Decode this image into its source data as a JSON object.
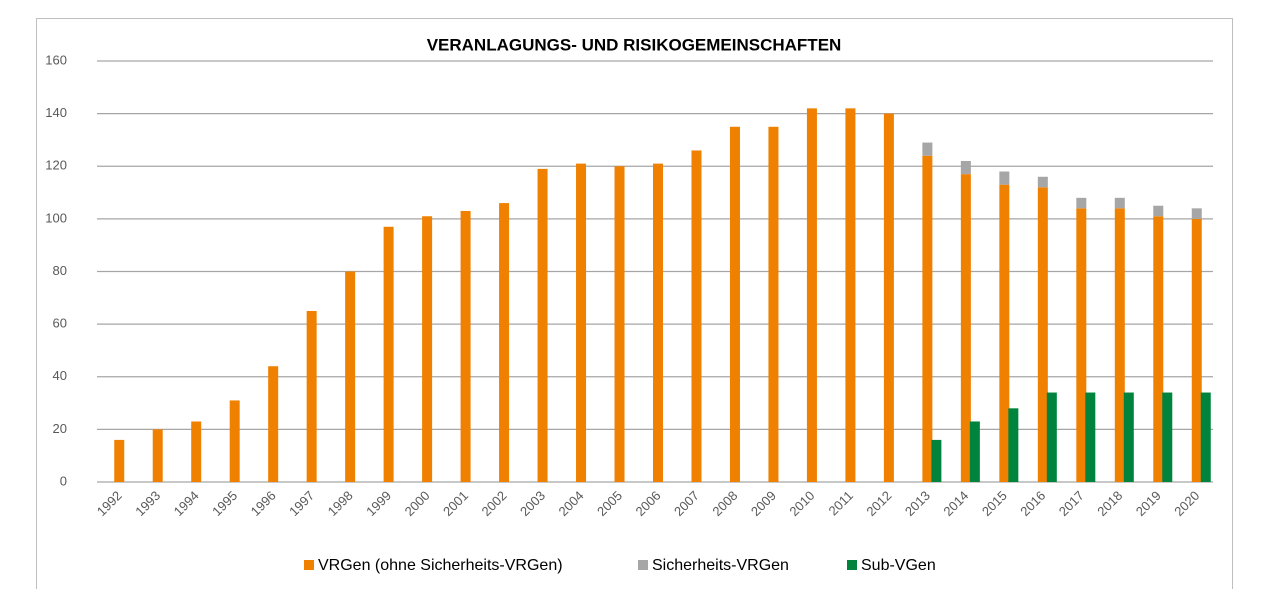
{
  "chart_data": {
    "type": "bar",
    "stacked": true,
    "title": "VERANLAGUNGS- UND RISIKOGEMEINSCHAFTEN",
    "categories": [
      "1992",
      "1993",
      "1994",
      "1995",
      "1996",
      "1997",
      "1998",
      "1999",
      "2000",
      "2001",
      "2002",
      "2003",
      "2004",
      "2005",
      "2006",
      "2007",
      "2008",
      "2009",
      "2010",
      "2011",
      "2012",
      "2013",
      "2014",
      "2015",
      "2016",
      "2017",
      "2018",
      "2019",
      "2020"
    ],
    "series": [
      {
        "name": "VRGen (ohne Sicherheits-VRGen)",
        "color": "#f08000",
        "stack": "a",
        "values": [
          16,
          20,
          23,
          31,
          44,
          65,
          80,
          97,
          101,
          103,
          106,
          119,
          121,
          120,
          121,
          126,
          135,
          135,
          142,
          142,
          140,
          124,
          117,
          113,
          112,
          104,
          104,
          101,
          100
        ]
      },
      {
        "name": "Sicherheits-VRGen",
        "color": "#a6a6a6",
        "stack": "a",
        "values": [
          null,
          null,
          null,
          null,
          null,
          null,
          null,
          null,
          null,
          null,
          null,
          null,
          null,
          null,
          null,
          null,
          null,
          null,
          null,
          null,
          null,
          5,
          5,
          5,
          4,
          4,
          4,
          4,
          4
        ]
      },
      {
        "name": "Sub-VGen",
        "color": "#00843d",
        "stack": "b",
        "values": [
          null,
          null,
          null,
          null,
          null,
          null,
          null,
          null,
          null,
          null,
          null,
          null,
          null,
          null,
          null,
          null,
          null,
          null,
          null,
          null,
          null,
          16,
          23,
          28,
          34,
          34,
          34,
          34,
          34
        ]
      }
    ],
    "ylim": [
      0,
      160
    ],
    "yticks": [
      0,
      20,
      40,
      60,
      80,
      100,
      120,
      140,
      160
    ],
    "grid": true,
    "legend": "bottom"
  }
}
